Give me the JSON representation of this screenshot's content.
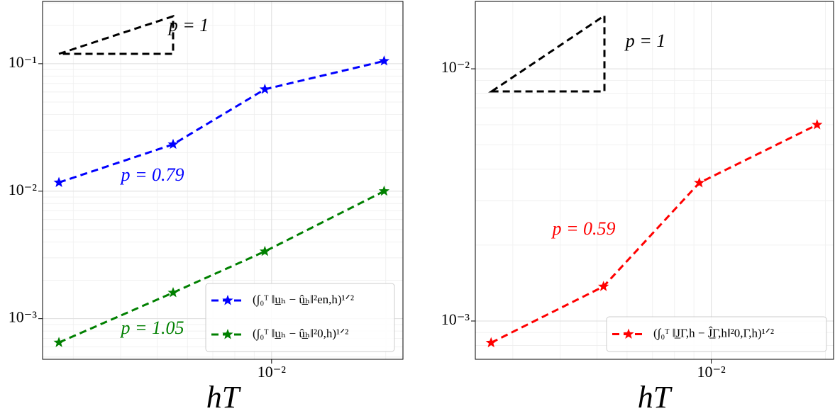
{
  "chart_data": [
    {
      "type": "line",
      "x_label": "hT",
      "xlog": true,
      "ylog": true,
      "grid": true,
      "legend": "lower right",
      "x": [
        0.00275,
        0.0055,
        0.0096,
        0.0198
      ],
      "xlim": [
        0.00249,
        0.0222
      ],
      "ylim": [
        0.00048,
        0.308
      ],
      "xticks": [
        {
          "value": 0.01,
          "label": "10⁻²"
        }
      ],
      "yticks": [
        {
          "value": 0.001,
          "label": "10⁻³"
        },
        {
          "value": 0.01,
          "label": "10⁻²"
        },
        {
          "value": 0.1,
          "label": "10⁻¹"
        }
      ],
      "series": [
        {
          "name": "(∫₀ᵀ ‖u̲ₕ − û̲ₕ‖²en,h)¹ᐟ²",
          "color": "#0000ff",
          "values": [
            0.0117,
            0.0233,
            0.063,
            0.105
          ]
        },
        {
          "name": "(∫₀ᵀ ‖u̲ₕ − û̲ₕ‖²0,h)¹ᐟ²",
          "color": "#008000",
          "values": [
            0.00065,
            0.0016,
            0.00337,
            0.01
          ]
        }
      ],
      "slope_label": "p = 1",
      "annotations": [
        {
          "text": "p = 0.79",
          "color": "#0000ff"
        },
        {
          "text": "p = 1.05",
          "color": "#008000"
        }
      ]
    },
    {
      "type": "line",
      "x_label": "hT",
      "xlog": true,
      "ylog": true,
      "grid": true,
      "legend": "lower right",
      "x": [
        0.00263,
        0.0052,
        0.0093,
        0.019
      ],
      "xlim": [
        0.00239,
        0.021
      ],
      "ylim": [
        0.000705,
        0.0185
      ],
      "xticks": [
        {
          "value": 0.01,
          "label": "10⁻²"
        }
      ],
      "yticks": [
        {
          "value": 0.001,
          "label": "10⁻³"
        },
        {
          "value": 0.01,
          "label": "10⁻²"
        }
      ],
      "series": [
        {
          "name": "(∫₀ᵀ ‖J̲Γ,h − Ĵ̲Γ,h‖²0,Γ,h)¹ᐟ²",
          "color": "#ff0000",
          "values": [
            0.00082,
            0.00137,
            0.00353,
            0.006
          ]
        }
      ],
      "slope_label": "p = 1",
      "annotations": [
        {
          "text": "p = 0.59",
          "color": "#ff0000"
        }
      ]
    }
  ]
}
